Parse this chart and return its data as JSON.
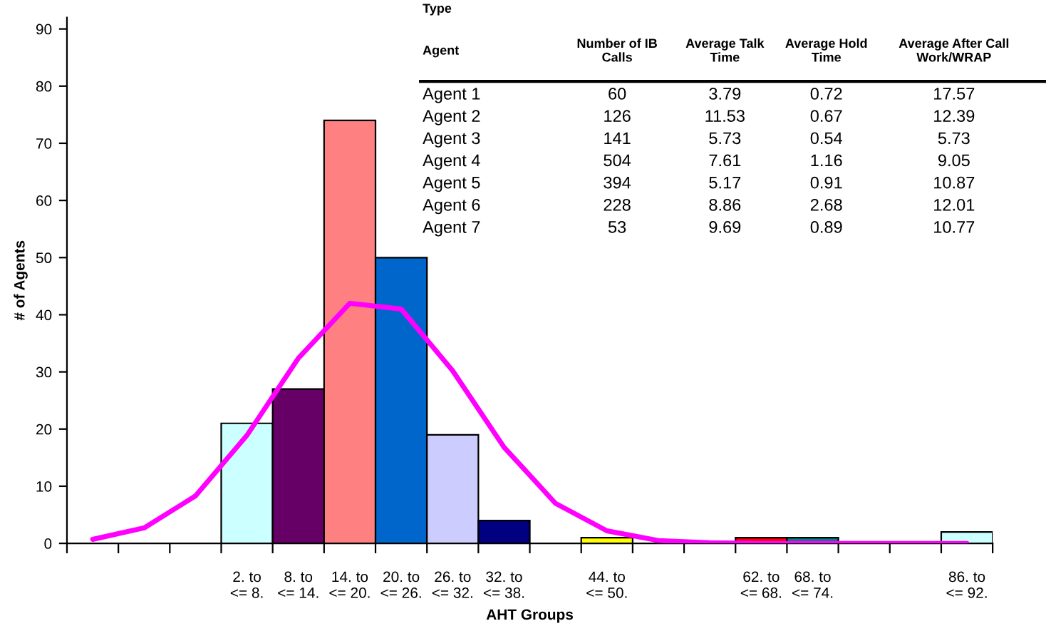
{
  "chart_data": {
    "type": "bar",
    "xlabel": "AHT Groups",
    "ylabel": "# of Agents",
    "categories": [
      null,
      null,
      null,
      "2. to\n<= 8.",
      "8. to\n<= 14.",
      "14. to\n<= 20.",
      "20. to\n<= 26.",
      "26. to\n<= 32.",
      "32. to\n<= 38.",
      null,
      "44. to\n<= 50.",
      null,
      null,
      "62. to\n<= 68.",
      "68. to\n<= 74.",
      null,
      null,
      "86. to\n<= 92."
    ],
    "values": [
      null,
      null,
      null,
      21,
      27,
      74,
      50,
      19,
      4,
      null,
      1,
      null,
      null,
      1,
      1,
      null,
      null,
      2
    ],
    "colors": [
      null,
      null,
      null,
      "#ccffff",
      "#660066",
      "#ff8080",
      "#0066cc",
      "#ccccff",
      "#000080",
      null,
      "#ffff00",
      null,
      null,
      "#ff0000",
      "#008080",
      null,
      null,
      "#ccffff"
    ],
    "ylim": [
      0,
      92
    ],
    "yticks": [
      0,
      10,
      20,
      30,
      40,
      50,
      60,
      70,
      80,
      90
    ],
    "series": [
      {
        "type": "line",
        "color": "#ff00ff",
        "values": [
          0.7,
          2.7,
          8.3,
          18.9,
          32.4,
          42,
          41,
          30.2,
          16.8,
          7.0,
          2.2,
          0.5,
          0.1,
          0,
          0,
          0,
          0,
          0
        ]
      }
    ],
    "grid": false,
    "legend": false,
    "annotations": [
      "Type",
      "Agent",
      "Number of IB\nCalls",
      "Average Talk\nTime",
      "Average Hold\nTime",
      "Average After Call\nWork/WRAP",
      "Agent 1",
      "60",
      "3.79",
      "0.72",
      "17.57",
      "Agent 2",
      "126",
      "11.53",
      "0.67",
      "12.39",
      "Agent 3",
      "141",
      "5.73",
      "0.54",
      "5.73",
      "Agent 4",
      "504",
      "7.61",
      "1.16",
      "9.05",
      "Agent 5",
      "394",
      "5.17",
      "0.91",
      "10.87",
      "Agent 6",
      "228",
      "8.86",
      "2.68",
      "12.01",
      "Agent 7",
      "53",
      "9.69",
      "0.89",
      "10.77"
    ]
  }
}
